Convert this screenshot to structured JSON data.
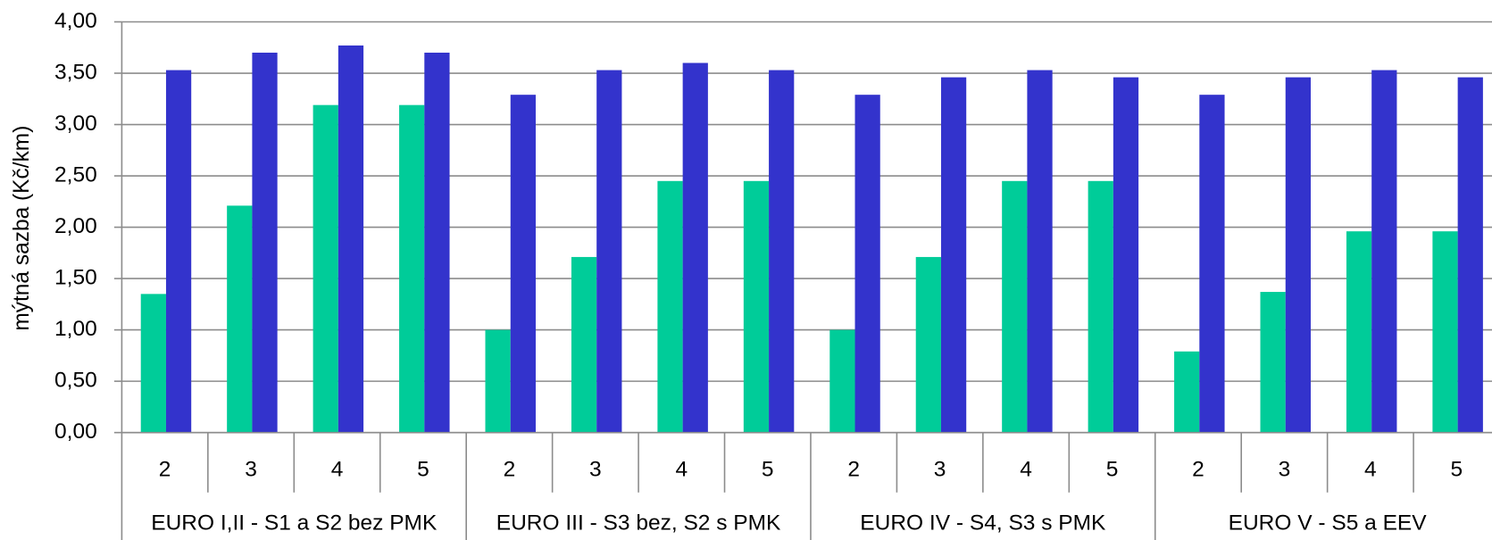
{
  "chart_data": {
    "type": "bar",
    "y_label": "mýtná sazba (Kč/km)",
    "categories": [
      "2",
      "3",
      "4",
      "5",
      "2",
      "3",
      "4",
      "5",
      "2",
      "3",
      "4",
      "5",
      "2",
      "3",
      "4",
      "5"
    ],
    "groups": [
      "EURO I,II - S1 a S2 bez PMK",
      "EURO III - S3 bez, S2 s PMK",
      "EURO IV - S4, S3 s PMK",
      "EURO V - S5 a EEV"
    ],
    "series": [
      {
        "color": "#00cc99",
        "values": [
          1.35,
          2.21,
          3.19,
          3.19,
          1.0,
          1.71,
          2.45,
          2.45,
          1.0,
          1.71,
          2.45,
          2.45,
          0.79,
          1.37,
          1.96,
          1.96
        ]
      },
      {
        "color": "#3333cc",
        "values": [
          3.53,
          3.7,
          3.77,
          3.7,
          3.29,
          3.53,
          3.6,
          3.53,
          3.29,
          3.46,
          3.53,
          3.46,
          3.29,
          3.46,
          3.53,
          3.46
        ]
      }
    ],
    "ylim": [
      0,
      4
    ],
    "yticks": [
      {
        "value": 0,
        "label": "0,00"
      },
      {
        "value": 0.5,
        "label": "0,50"
      },
      {
        "value": 1,
        "label": "1,00"
      },
      {
        "value": 1.5,
        "label": "1,50"
      },
      {
        "value": 2,
        "label": "2,00"
      },
      {
        "value": 2.5,
        "label": "2,50"
      },
      {
        "value": 3,
        "label": "3,00"
      },
      {
        "value": 3.5,
        "label": "3,50"
      },
      {
        "value": 4,
        "label": "4,00"
      }
    ],
    "grid": true
  }
}
